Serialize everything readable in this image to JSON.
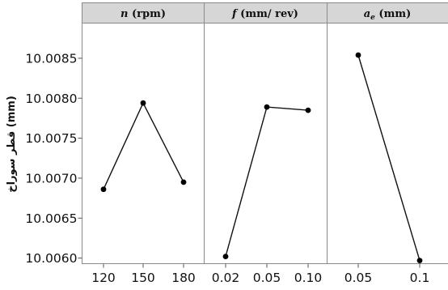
{
  "chart_data": {
    "type": "line",
    "ylabel": "قطر سوراخ (mm)",
    "ylim": [
      10.00593,
      10.00894
    ],
    "yticks": [
      "10.0085",
      "10.0080",
      "10.0075",
      "10.0070",
      "10.0065",
      "10.0060"
    ],
    "ytick_values": [
      10.0085,
      10.008,
      10.0075,
      10.007,
      10.0065,
      10.006
    ],
    "grid": false,
    "panels": [
      {
        "title_var": "n",
        "title_unit": " (rpm)",
        "categories": [
          "120",
          "150",
          "180"
        ],
        "values": [
          10.00686,
          10.00794,
          10.00695
        ]
      },
      {
        "title_var": "f",
        "title_unit": " (mm/ rev)",
        "categories": [
          "0.02",
          "0.05",
          "0.10"
        ],
        "values": [
          10.00602,
          10.00789,
          10.00785
        ]
      },
      {
        "title_var": "a",
        "title_sub": "e",
        "title_unit": " (mm)",
        "categories": [
          "0.05",
          "0.1"
        ],
        "values": [
          10.00854,
          10.00597
        ]
      }
    ]
  }
}
